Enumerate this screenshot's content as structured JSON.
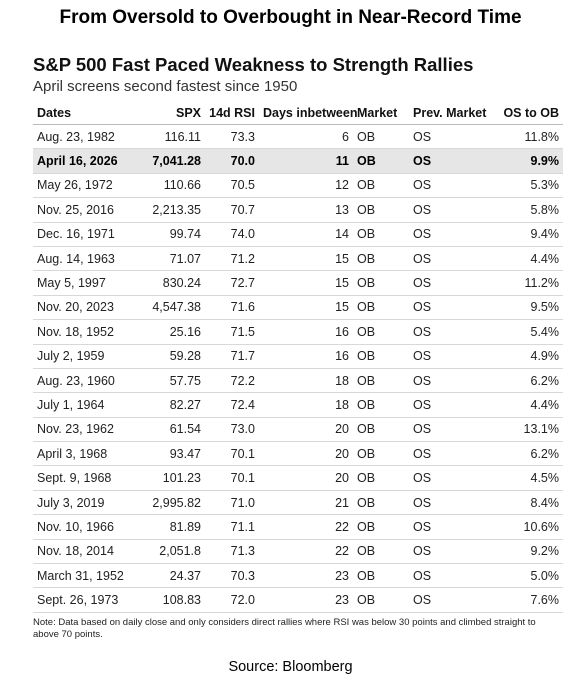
{
  "header": {
    "title": "From Oversold to Overbought in Near-Record Time"
  },
  "source": "Source: Bloomberg",
  "chart_data": {
    "type": "table",
    "title": "S&P 500 Fast Paced Weakness to Strength Rallies",
    "subtitle": "April screens second fastest since 1950",
    "columns": [
      "Dates",
      "SPX",
      "14d RSI",
      "Days inbetween",
      "Market",
      "Prev. Market",
      "OS to OB"
    ],
    "rows": [
      [
        "Aug. 23, 1982",
        "116.11",
        "73.3",
        "6",
        "OB",
        "OS",
        "11.8%"
      ],
      [
        "April 16, 2026",
        "7,041.28",
        "70.0",
        "11",
        "OB",
        "OS",
        "9.9%"
      ],
      [
        "May 26, 1972",
        "110.66",
        "70.5",
        "12",
        "OB",
        "OS",
        "5.3%"
      ],
      [
        "Nov. 25, 2016",
        "2,213.35",
        "70.7",
        "13",
        "OB",
        "OS",
        "5.8%"
      ],
      [
        "Dec. 16, 1971",
        "99.74",
        "74.0",
        "14",
        "OB",
        "OS",
        "9.4%"
      ],
      [
        "Aug. 14, 1963",
        "71.07",
        "71.2",
        "15",
        "OB",
        "OS",
        "4.4%"
      ],
      [
        "May 5, 1997",
        "830.24",
        "72.7",
        "15",
        "OB",
        "OS",
        "11.2%"
      ],
      [
        "Nov. 20, 2023",
        "4,547.38",
        "71.6",
        "15",
        "OB",
        "OS",
        "9.5%"
      ],
      [
        "Nov. 18, 1952",
        "25.16",
        "71.5",
        "16",
        "OB",
        "OS",
        "5.4%"
      ],
      [
        "July 2, 1959",
        "59.28",
        "71.7",
        "16",
        "OB",
        "OS",
        "4.9%"
      ],
      [
        "Aug. 23, 1960",
        "57.75",
        "72.2",
        "18",
        "OB",
        "OS",
        "6.2%"
      ],
      [
        "July 1, 1964",
        "82.27",
        "72.4",
        "18",
        "OB",
        "OS",
        "4.4%"
      ],
      [
        "Nov. 23, 1962",
        "61.54",
        "73.0",
        "20",
        "OB",
        "OS",
        "13.1%"
      ],
      [
        "April 3, 1968",
        "93.47",
        "70.1",
        "20",
        "OB",
        "OS",
        "6.2%"
      ],
      [
        "Sept. 9, 1968",
        "101.23",
        "70.1",
        "20",
        "OB",
        "OS",
        "4.5%"
      ],
      [
        "July 3, 2019",
        "2,995.82",
        "71.0",
        "21",
        "OB",
        "OS",
        "8.4%"
      ],
      [
        "Nov. 10, 1966",
        "81.89",
        "71.1",
        "22",
        "OB",
        "OS",
        "10.6%"
      ],
      [
        "Nov. 18, 2014",
        "2,051.8",
        "71.3",
        "22",
        "OB",
        "OS",
        "9.2%"
      ],
      [
        "March 31, 1952",
        "24.37",
        "70.3",
        "23",
        "OB",
        "OS",
        "5.0%"
      ],
      [
        "Sept. 26, 1973",
        "108.83",
        "72.0",
        "23",
        "OB",
        "OS",
        "7.6%"
      ]
    ],
    "highlighted_row": 1,
    "note": "Note: Data based on daily close and only considers direct rallies where RSI was below 30 points and climbed straight to above 70 points."
  }
}
